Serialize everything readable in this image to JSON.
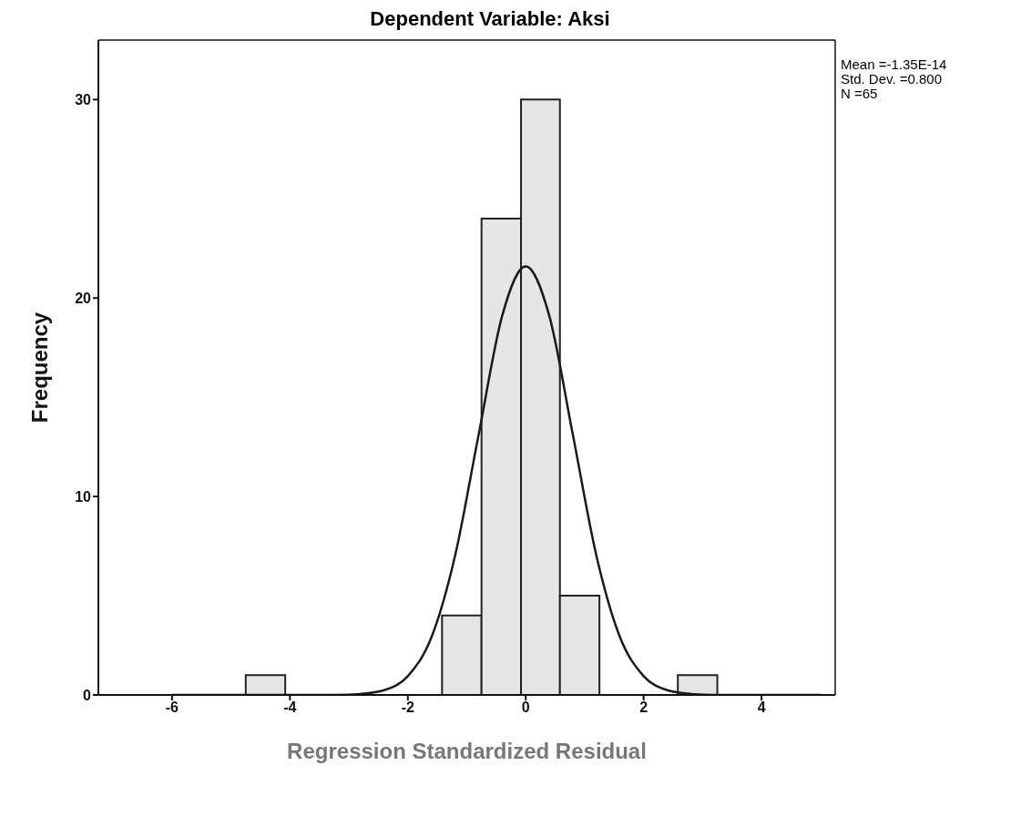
{
  "chart_data": {
    "type": "histogram",
    "title": "Dependent Variable: Aksi",
    "xlabel": "Regression Standardized Residual",
    "ylabel": "Frequency",
    "xlim": [
      -7.25,
      5.25
    ],
    "xticks": [
      -6,
      -4,
      -2,
      0,
      2,
      4
    ],
    "ylim": [
      0,
      33
    ],
    "yticks": [
      0,
      10,
      20,
      30
    ],
    "grid": false,
    "legend": false,
    "annotations": [
      "Mean =-1.35E-14",
      "Std. Dev. =0.800",
      "N =65"
    ],
    "series": [
      {
        "color": "#e6e6e6",
        "bins": [
          -4.75,
          -4.08,
          -1.42,
          -0.75,
          -0.08,
          0.58,
          1.25,
          2.58,
          3.25
        ],
        "values": [
          1,
          0,
          4,
          24,
          30,
          5,
          0,
          1
        ]
      },
      {
        "type": "line",
        "color": "#1a1a1a",
        "marker": "none",
        "line_style": "solid",
        "x": [
          -6,
          -3.2,
          -2.8,
          -2.4,
          -2,
          -1.6,
          -1.2,
          -0.8,
          -0.4,
          0,
          0.4,
          0.8,
          1.2,
          1.6,
          2,
          2.4,
          2.8,
          3.2,
          5
        ],
        "values": [
          0,
          0,
          0.05,
          0.24,
          0.95,
          2.9,
          7,
          13.1,
          19.1,
          21.6,
          19.1,
          13.1,
          7,
          2.9,
          0.95,
          0.24,
          0.05,
          0,
          0
        ]
      }
    ]
  }
}
